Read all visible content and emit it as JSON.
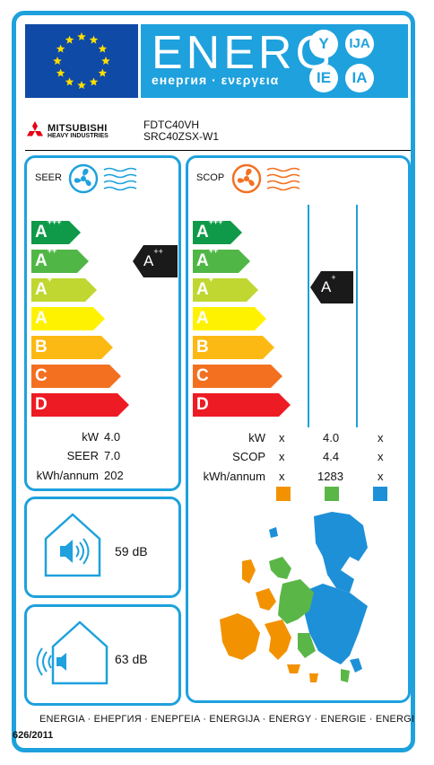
{
  "header": {
    "energy_word": "ENERG",
    "energy_sub": "енергия · ενεργεια",
    "lang_codes": [
      "Y",
      "IJA",
      "IE",
      "IA"
    ]
  },
  "brand": {
    "name": "MITSUBISHI",
    "sub": "HEAVY INDUSTRIES",
    "model_indoor": "FDTC40VH",
    "model_outdoor": "SRC40ZSX-W1"
  },
  "seer": {
    "title": "SEER",
    "classes": [
      {
        "letter": "A",
        "sup": "+++",
        "color": "#0e9a48"
      },
      {
        "letter": "A",
        "sup": "++",
        "color": "#50b747"
      },
      {
        "letter": "A",
        "sup": "+",
        "color": "#bfd730"
      },
      {
        "letter": "A",
        "sup": "",
        "color": "#fff200"
      },
      {
        "letter": "B",
        "sup": "",
        "color": "#fdb913"
      },
      {
        "letter": "C",
        "sup": "",
        "color": "#f37021"
      },
      {
        "letter": "D",
        "sup": "",
        "color": "#ed1c24"
      }
    ],
    "rating": {
      "letter": "A",
      "sup": "++"
    },
    "rows": [
      {
        "label": "kW",
        "value": "4.0"
      },
      {
        "label": "SEER",
        "value": "7.0"
      },
      {
        "label": "kWh/annum",
        "value": "202"
      }
    ]
  },
  "scop": {
    "title": "SCOP",
    "rating": {
      "letter": "A",
      "sup": "+"
    },
    "rows": [
      {
        "label": "kW",
        "cold": "x",
        "avg": "4.0",
        "warm": "x"
      },
      {
        "label": "SCOP",
        "cold": "x",
        "avg": "4.4",
        "warm": "x"
      },
      {
        "label": "kWh/annum",
        "cold": "x",
        "avg": "1283",
        "warm": "x"
      }
    ],
    "zone_colors": [
      "#f39200",
      "#5bb648",
      "#1e90d8"
    ]
  },
  "noise": {
    "indoor": "59 dB",
    "outdoor": "63 dB"
  },
  "footer": {
    "languages": "ENERGIA · ЕНЕРГИЯ · ΕΝΕΡΓΕΙΑ · ENERGIJA · ENERGY · ENERGIE · ENERGI",
    "regulation": "626/2011"
  }
}
